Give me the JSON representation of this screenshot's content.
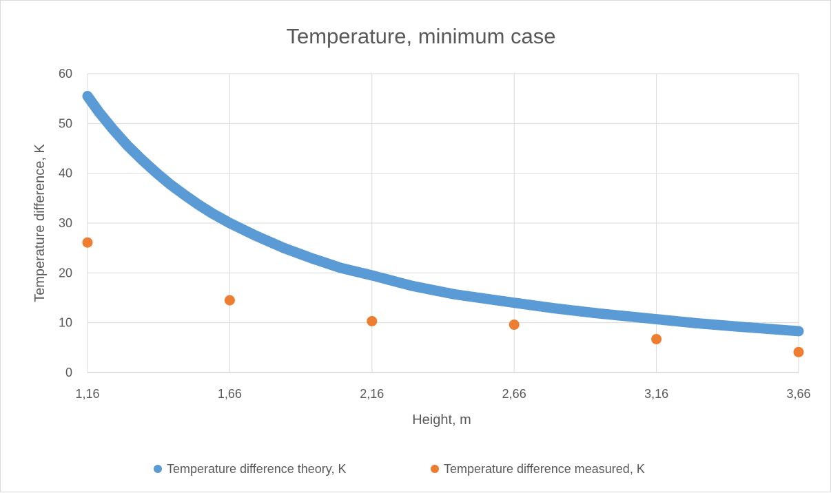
{
  "chart_data": {
    "type": "scatter",
    "title": "Temperature, minimum case",
    "xlabel": "Height, m",
    "ylabel": "Temperature difference, K",
    "xlim": [
      1.16,
      3.66
    ],
    "ylim": [
      0,
      60
    ],
    "xticks": [
      1.16,
      1.66,
      2.16,
      2.66,
      3.16,
      3.66
    ],
    "xtick_labels": [
      "1,16",
      "1,66",
      "2,16",
      "2,66",
      "3,16",
      "3,66"
    ],
    "yticks": [
      0,
      10,
      20,
      30,
      40,
      50,
      60
    ],
    "ytick_labels": [
      "0",
      "10",
      "20",
      "30",
      "40",
      "50",
      "60"
    ],
    "grid": true,
    "legend_position": "bottom",
    "series": [
      {
        "name": "Temperature difference theory, K",
        "color": "#5b9bd5",
        "marker": "circle",
        "x": [
          1.16,
          1.2,
          1.25,
          1.3,
          1.35,
          1.4,
          1.45,
          1.5,
          1.55,
          1.6,
          1.66,
          1.75,
          1.85,
          1.95,
          2.05,
          2.16,
          2.3,
          2.45,
          2.66,
          2.8,
          2.95,
          3.16,
          3.3,
          3.45,
          3.66
        ],
        "y": [
          55.5,
          52.3,
          48.8,
          45.6,
          42.8,
          40.2,
          37.8,
          35.7,
          33.7,
          31.9,
          30.0,
          27.5,
          25.0,
          22.9,
          21.0,
          19.5,
          17.4,
          15.7,
          14.0,
          12.9,
          11.9,
          10.7,
          9.9,
          9.2,
          8.3
        ]
      },
      {
        "name": "Temperature difference measured, K",
        "color": "#ed7d31",
        "marker": "circle",
        "x": [
          1.16,
          1.66,
          2.16,
          2.66,
          3.16,
          3.66
        ],
        "y": [
          26.1,
          14.5,
          10.3,
          9.6,
          6.7,
          4.1
        ]
      }
    ]
  }
}
